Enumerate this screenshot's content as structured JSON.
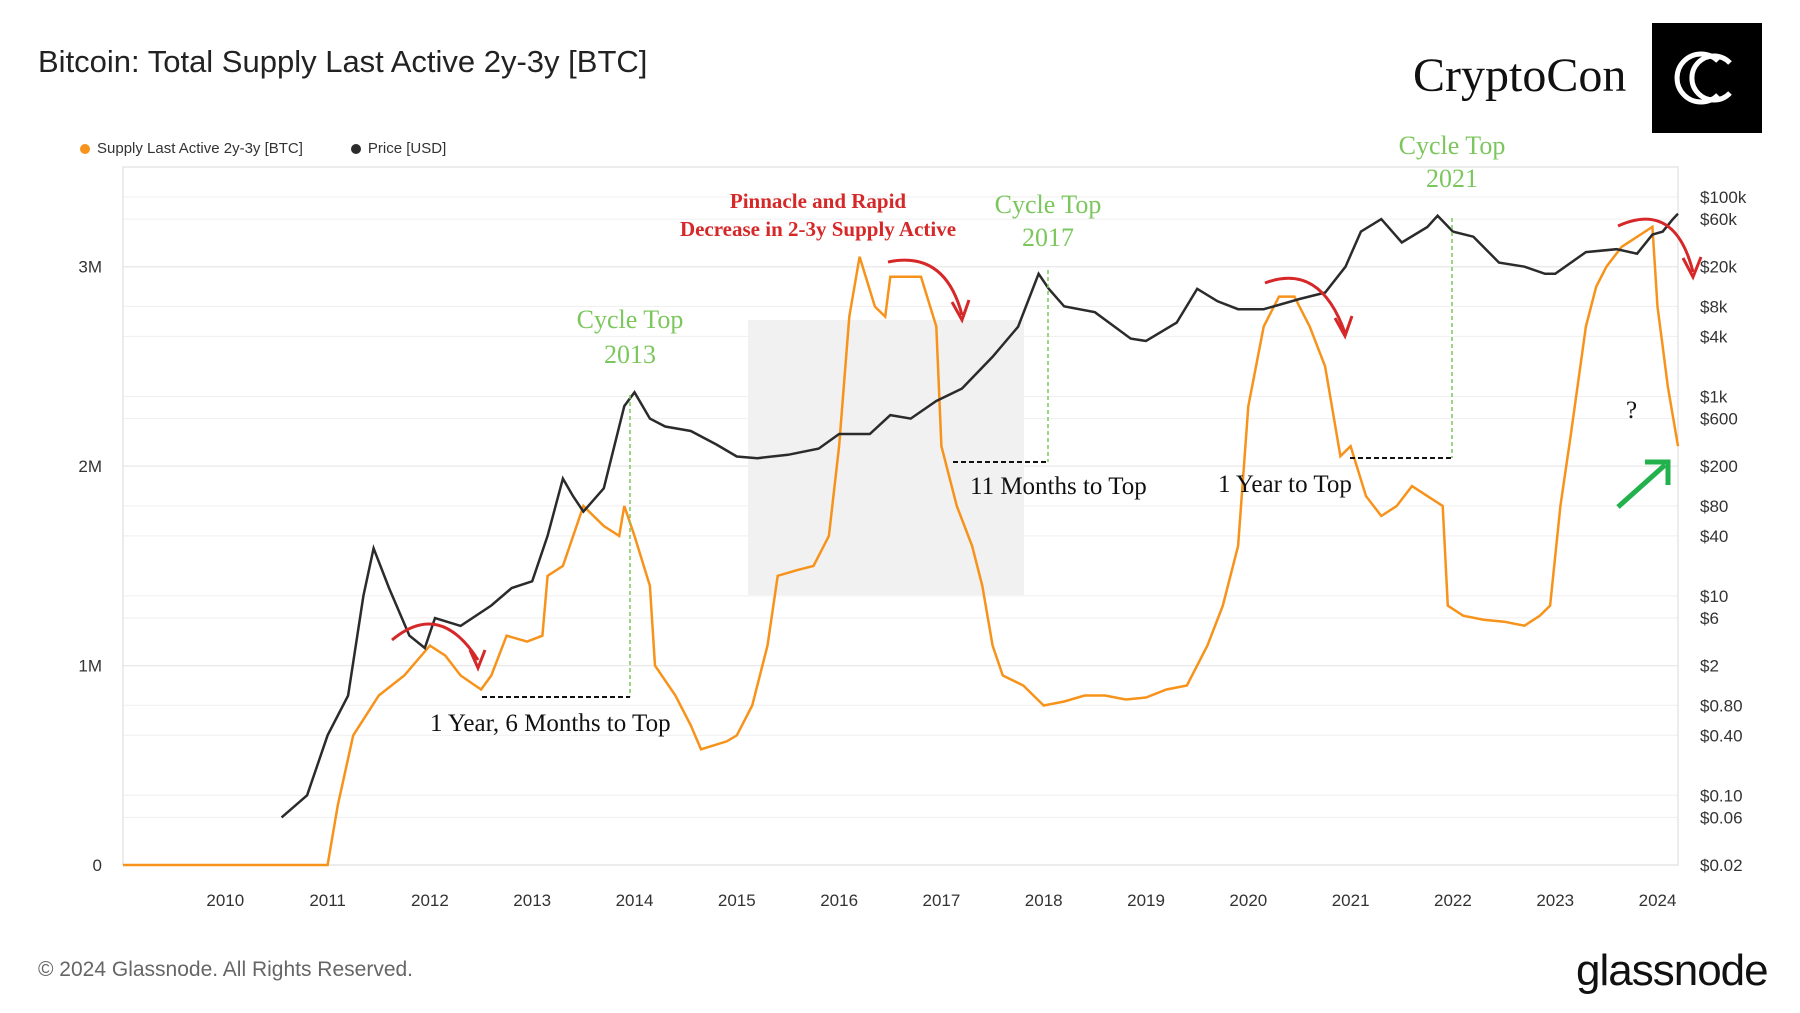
{
  "title": "Bitcoin: Total Supply Last Active 2y-3y [BTC]",
  "brand": {
    "text": "CryptoCon",
    "logo_icon": "cc-monogram-icon"
  },
  "footer": {
    "copyright": "© 2024 Glassnode. All Rights Reserved.",
    "logo": "glassnode"
  },
  "colors": {
    "supply": "#f7931a",
    "price": "#2b2b2b",
    "green": "#7bc75d",
    "red": "#d62828",
    "arrow_green": "#22b14c"
  },
  "chart_data": {
    "type": "line",
    "legend": [
      {
        "label": "Supply Last Active 2y-3y [BTC]",
        "color": "#f7931a"
      },
      {
        "label": "Price [USD]",
        "color": "#2b2b2b"
      }
    ],
    "x_ticks": [
      "2010",
      "2011",
      "2012",
      "2013",
      "2014",
      "2015",
      "2016",
      "2017",
      "2018",
      "2019",
      "2020",
      "2021",
      "2022",
      "2023",
      "2024"
    ],
    "x_range": [
      2009.0,
      2024.2
    ],
    "y_left_ticks": [
      {
        "value": 0,
        "label": "0"
      },
      {
        "value": 1000000,
        "label": "1M"
      },
      {
        "value": 2000000,
        "label": "2M"
      },
      {
        "value": 3000000,
        "label": "3M"
      }
    ],
    "y_left_range": [
      0,
      3500000
    ],
    "y_right_scale": "log",
    "y_right_range": [
      0.02,
      200000
    ],
    "y_right_ticks": [
      {
        "value": 100000,
        "label": "$100k"
      },
      {
        "value": 60000,
        "label": "$60k"
      },
      {
        "value": 20000,
        "label": "$20k"
      },
      {
        "value": 8000,
        "label": "$8k"
      },
      {
        "value": 4000,
        "label": "$4k"
      },
      {
        "value": 1000,
        "label": "$1k"
      },
      {
        "value": 600,
        "label": "$600"
      },
      {
        "value": 200,
        "label": "$200"
      },
      {
        "value": 80,
        "label": "$80"
      },
      {
        "value": 40,
        "label": "$40"
      },
      {
        "value": 10,
        "label": "$10"
      },
      {
        "value": 6,
        "label": "$6"
      },
      {
        "value": 2,
        "label": "$2"
      },
      {
        "value": 0.8,
        "label": "$0.80"
      },
      {
        "value": 0.4,
        "label": "$0.40"
      },
      {
        "value": 0.1,
        "label": "$0.10"
      },
      {
        "value": 0.06,
        "label": "$0.06"
      },
      {
        "value": 0.02,
        "label": "$0.02"
      }
    ],
    "series": [
      {
        "name": "Supply Last Active 2y-3y [BTC]",
        "axis": "left",
        "color": "#f7931a",
        "points": [
          [
            2009.0,
            0
          ],
          [
            2011.0,
            0
          ],
          [
            2011.1,
            300000
          ],
          [
            2011.25,
            650000
          ],
          [
            2011.5,
            850000
          ],
          [
            2011.75,
            950000
          ],
          [
            2012.0,
            1100000
          ],
          [
            2012.15,
            1050000
          ],
          [
            2012.3,
            950000
          ],
          [
            2012.5,
            880000
          ],
          [
            2012.6,
            950000
          ],
          [
            2012.75,
            1150000
          ],
          [
            2012.95,
            1120000
          ],
          [
            2013.1,
            1150000
          ],
          [
            2013.15,
            1450000
          ],
          [
            2013.3,
            1500000
          ],
          [
            2013.5,
            1800000
          ],
          [
            2013.7,
            1700000
          ],
          [
            2013.85,
            1650000
          ],
          [
            2013.9,
            1800000
          ],
          [
            2014.0,
            1650000
          ],
          [
            2014.15,
            1400000
          ],
          [
            2014.2,
            1000000
          ],
          [
            2014.4,
            850000
          ],
          [
            2014.55,
            700000
          ],
          [
            2014.65,
            580000
          ],
          [
            2014.9,
            620000
          ],
          [
            2015.0,
            650000
          ],
          [
            2015.15,
            800000
          ],
          [
            2015.3,
            1100000
          ],
          [
            2015.4,
            1450000
          ],
          [
            2015.6,
            1480000
          ],
          [
            2015.75,
            1500000
          ],
          [
            2015.9,
            1650000
          ],
          [
            2016.0,
            2100000
          ],
          [
            2016.1,
            2750000
          ],
          [
            2016.2,
            3050000
          ],
          [
            2016.35,
            2800000
          ],
          [
            2016.45,
            2750000
          ],
          [
            2016.5,
            2950000
          ],
          [
            2016.65,
            2950000
          ],
          [
            2016.8,
            2950000
          ],
          [
            2016.95,
            2700000
          ],
          [
            2017.0,
            2100000
          ],
          [
            2017.15,
            1800000
          ],
          [
            2017.3,
            1600000
          ],
          [
            2017.4,
            1400000
          ],
          [
            2017.5,
            1100000
          ],
          [
            2017.6,
            950000
          ],
          [
            2017.8,
            900000
          ],
          [
            2018.0,
            800000
          ],
          [
            2018.2,
            820000
          ],
          [
            2018.4,
            850000
          ],
          [
            2018.6,
            850000
          ],
          [
            2018.8,
            830000
          ],
          [
            2019.0,
            840000
          ],
          [
            2019.2,
            880000
          ],
          [
            2019.4,
            900000
          ],
          [
            2019.6,
            1100000
          ],
          [
            2019.75,
            1300000
          ],
          [
            2019.9,
            1600000
          ],
          [
            2020.0,
            2300000
          ],
          [
            2020.15,
            2700000
          ],
          [
            2020.3,
            2850000
          ],
          [
            2020.45,
            2850000
          ],
          [
            2020.6,
            2700000
          ],
          [
            2020.75,
            2500000
          ],
          [
            2020.9,
            2050000
          ],
          [
            2021.0,
            2100000
          ],
          [
            2021.15,
            1850000
          ],
          [
            2021.3,
            1750000
          ],
          [
            2021.45,
            1800000
          ],
          [
            2021.6,
            1900000
          ],
          [
            2021.75,
            1850000
          ],
          [
            2021.9,
            1800000
          ],
          [
            2021.95,
            1300000
          ],
          [
            2022.1,
            1250000
          ],
          [
            2022.3,
            1230000
          ],
          [
            2022.5,
            1220000
          ],
          [
            2022.7,
            1200000
          ],
          [
            2022.85,
            1250000
          ],
          [
            2022.95,
            1300000
          ],
          [
            2023.05,
            1800000
          ],
          [
            2023.15,
            2150000
          ],
          [
            2023.3,
            2700000
          ],
          [
            2023.4,
            2900000
          ],
          [
            2023.5,
            3000000
          ],
          [
            2023.65,
            3100000
          ],
          [
            2023.8,
            3150000
          ],
          [
            2023.95,
            3200000
          ],
          [
            2024.0,
            2800000
          ],
          [
            2024.05,
            2600000
          ],
          [
            2024.1,
            2400000
          ],
          [
            2024.15,
            2250000
          ],
          [
            2024.2,
            2100000
          ]
        ]
      },
      {
        "name": "Price [USD]",
        "axis": "right",
        "color": "#2b2b2b",
        "points": [
          [
            2010.55,
            0.06
          ],
          [
            2010.8,
            0.1
          ],
          [
            2011.0,
            0.4
          ],
          [
            2011.2,
            1
          ],
          [
            2011.35,
            10
          ],
          [
            2011.45,
            30
          ],
          [
            2011.6,
            12
          ],
          [
            2011.8,
            4
          ],
          [
            2011.95,
            3
          ],
          [
            2012.05,
            6
          ],
          [
            2012.3,
            5
          ],
          [
            2012.6,
            8
          ],
          [
            2012.8,
            12
          ],
          [
            2013.0,
            14
          ],
          [
            2013.15,
            40
          ],
          [
            2013.3,
            150
          ],
          [
            2013.4,
            100
          ],
          [
            2013.5,
            70
          ],
          [
            2013.7,
            120
          ],
          [
            2013.9,
            800
          ],
          [
            2014.0,
            1100
          ],
          [
            2014.15,
            600
          ],
          [
            2014.3,
            500
          ],
          [
            2014.55,
            450
          ],
          [
            2014.8,
            330
          ],
          [
            2015.0,
            250
          ],
          [
            2015.2,
            240
          ],
          [
            2015.5,
            260
          ],
          [
            2015.8,
            300
          ],
          [
            2016.0,
            420
          ],
          [
            2016.3,
            420
          ],
          [
            2016.5,
            650
          ],
          [
            2016.7,
            600
          ],
          [
            2016.95,
            900
          ],
          [
            2017.2,
            1200
          ],
          [
            2017.5,
            2500
          ],
          [
            2017.75,
            5000
          ],
          [
            2017.95,
            17000
          ],
          [
            2018.05,
            12000
          ],
          [
            2018.2,
            8000
          ],
          [
            2018.5,
            7000
          ],
          [
            2018.85,
            3800
          ],
          [
            2019.0,
            3600
          ],
          [
            2019.3,
            5500
          ],
          [
            2019.5,
            12000
          ],
          [
            2019.7,
            9000
          ],
          [
            2019.9,
            7500
          ],
          [
            2020.15,
            7500
          ],
          [
            2020.5,
            9500
          ],
          [
            2020.75,
            11000
          ],
          [
            2020.95,
            20000
          ],
          [
            2021.1,
            45000
          ],
          [
            2021.3,
            60000
          ],
          [
            2021.5,
            35000
          ],
          [
            2021.75,
            50000
          ],
          [
            2021.85,
            65000
          ],
          [
            2022.0,
            45000
          ],
          [
            2022.2,
            40000
          ],
          [
            2022.45,
            22000
          ],
          [
            2022.7,
            20000
          ],
          [
            2022.9,
            17000
          ],
          [
            2023.0,
            17000
          ],
          [
            2023.3,
            28000
          ],
          [
            2023.6,
            30000
          ],
          [
            2023.8,
            27000
          ],
          [
            2023.95,
            42000
          ],
          [
            2024.05,
            45000
          ],
          [
            2024.15,
            60000
          ],
          [
            2024.2,
            68000
          ]
        ]
      }
    ]
  },
  "annotations": {
    "cycle_top": "Cycle Top",
    "y2013": "2013",
    "y2017": "2017",
    "y2021": "2021",
    "pinnacle_line1": "Pinnacle and Rapid",
    "pinnacle_line2": "Decrease in 2-3y Supply Active",
    "months_2013": "1 Year, 6 Months to Top",
    "months_2017": "11 Months to Top",
    "months_2021": "1 Year to Top",
    "question": "?"
  }
}
